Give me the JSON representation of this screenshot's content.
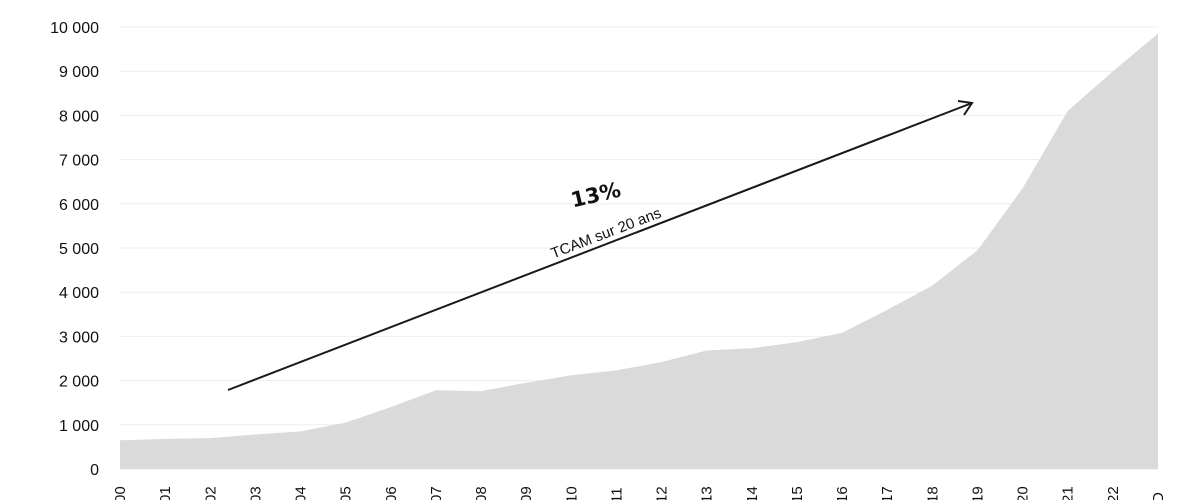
{
  "chart_data": {
    "type": "area",
    "title": "",
    "xlabel": "",
    "ylabel": "",
    "x_tick_labels": [
      "00",
      "01",
      "02",
      "03",
      "04",
      "05",
      "06",
      "07",
      "08",
      "09",
      "10",
      "11",
      "12",
      "13",
      "14",
      "15",
      "16",
      "17",
      "18",
      "19",
      "20",
      "21",
      "22",
      "D"
    ],
    "values": [
      650,
      680,
      700,
      780,
      850,
      1050,
      1400,
      1780,
      1760,
      1950,
      2120,
      2230,
      2420,
      2680,
      2730,
      2870,
      3080,
      3600,
      4150,
      4950,
      6350,
      8100,
      9000,
      9850
    ],
    "ylim": [
      0,
      10000
    ],
    "y_ticks": [
      0,
      1000,
      2000,
      3000,
      4000,
      5000,
      6000,
      7000,
      8000,
      9000,
      10000
    ],
    "y_tick_labels": [
      "0",
      "1 000",
      "2 000",
      "3 000",
      "4 000",
      "5 000",
      "6 000",
      "7 000",
      "8 000",
      "9 000",
      "10 000"
    ],
    "grid": true,
    "annotation": {
      "main": "13%",
      "sub": "TCAM sur 20 ans"
    },
    "colors": {
      "area": "#dadada",
      "grid": "#eeeeee",
      "arrow": "#1a1a1a",
      "text": "#111111"
    }
  }
}
